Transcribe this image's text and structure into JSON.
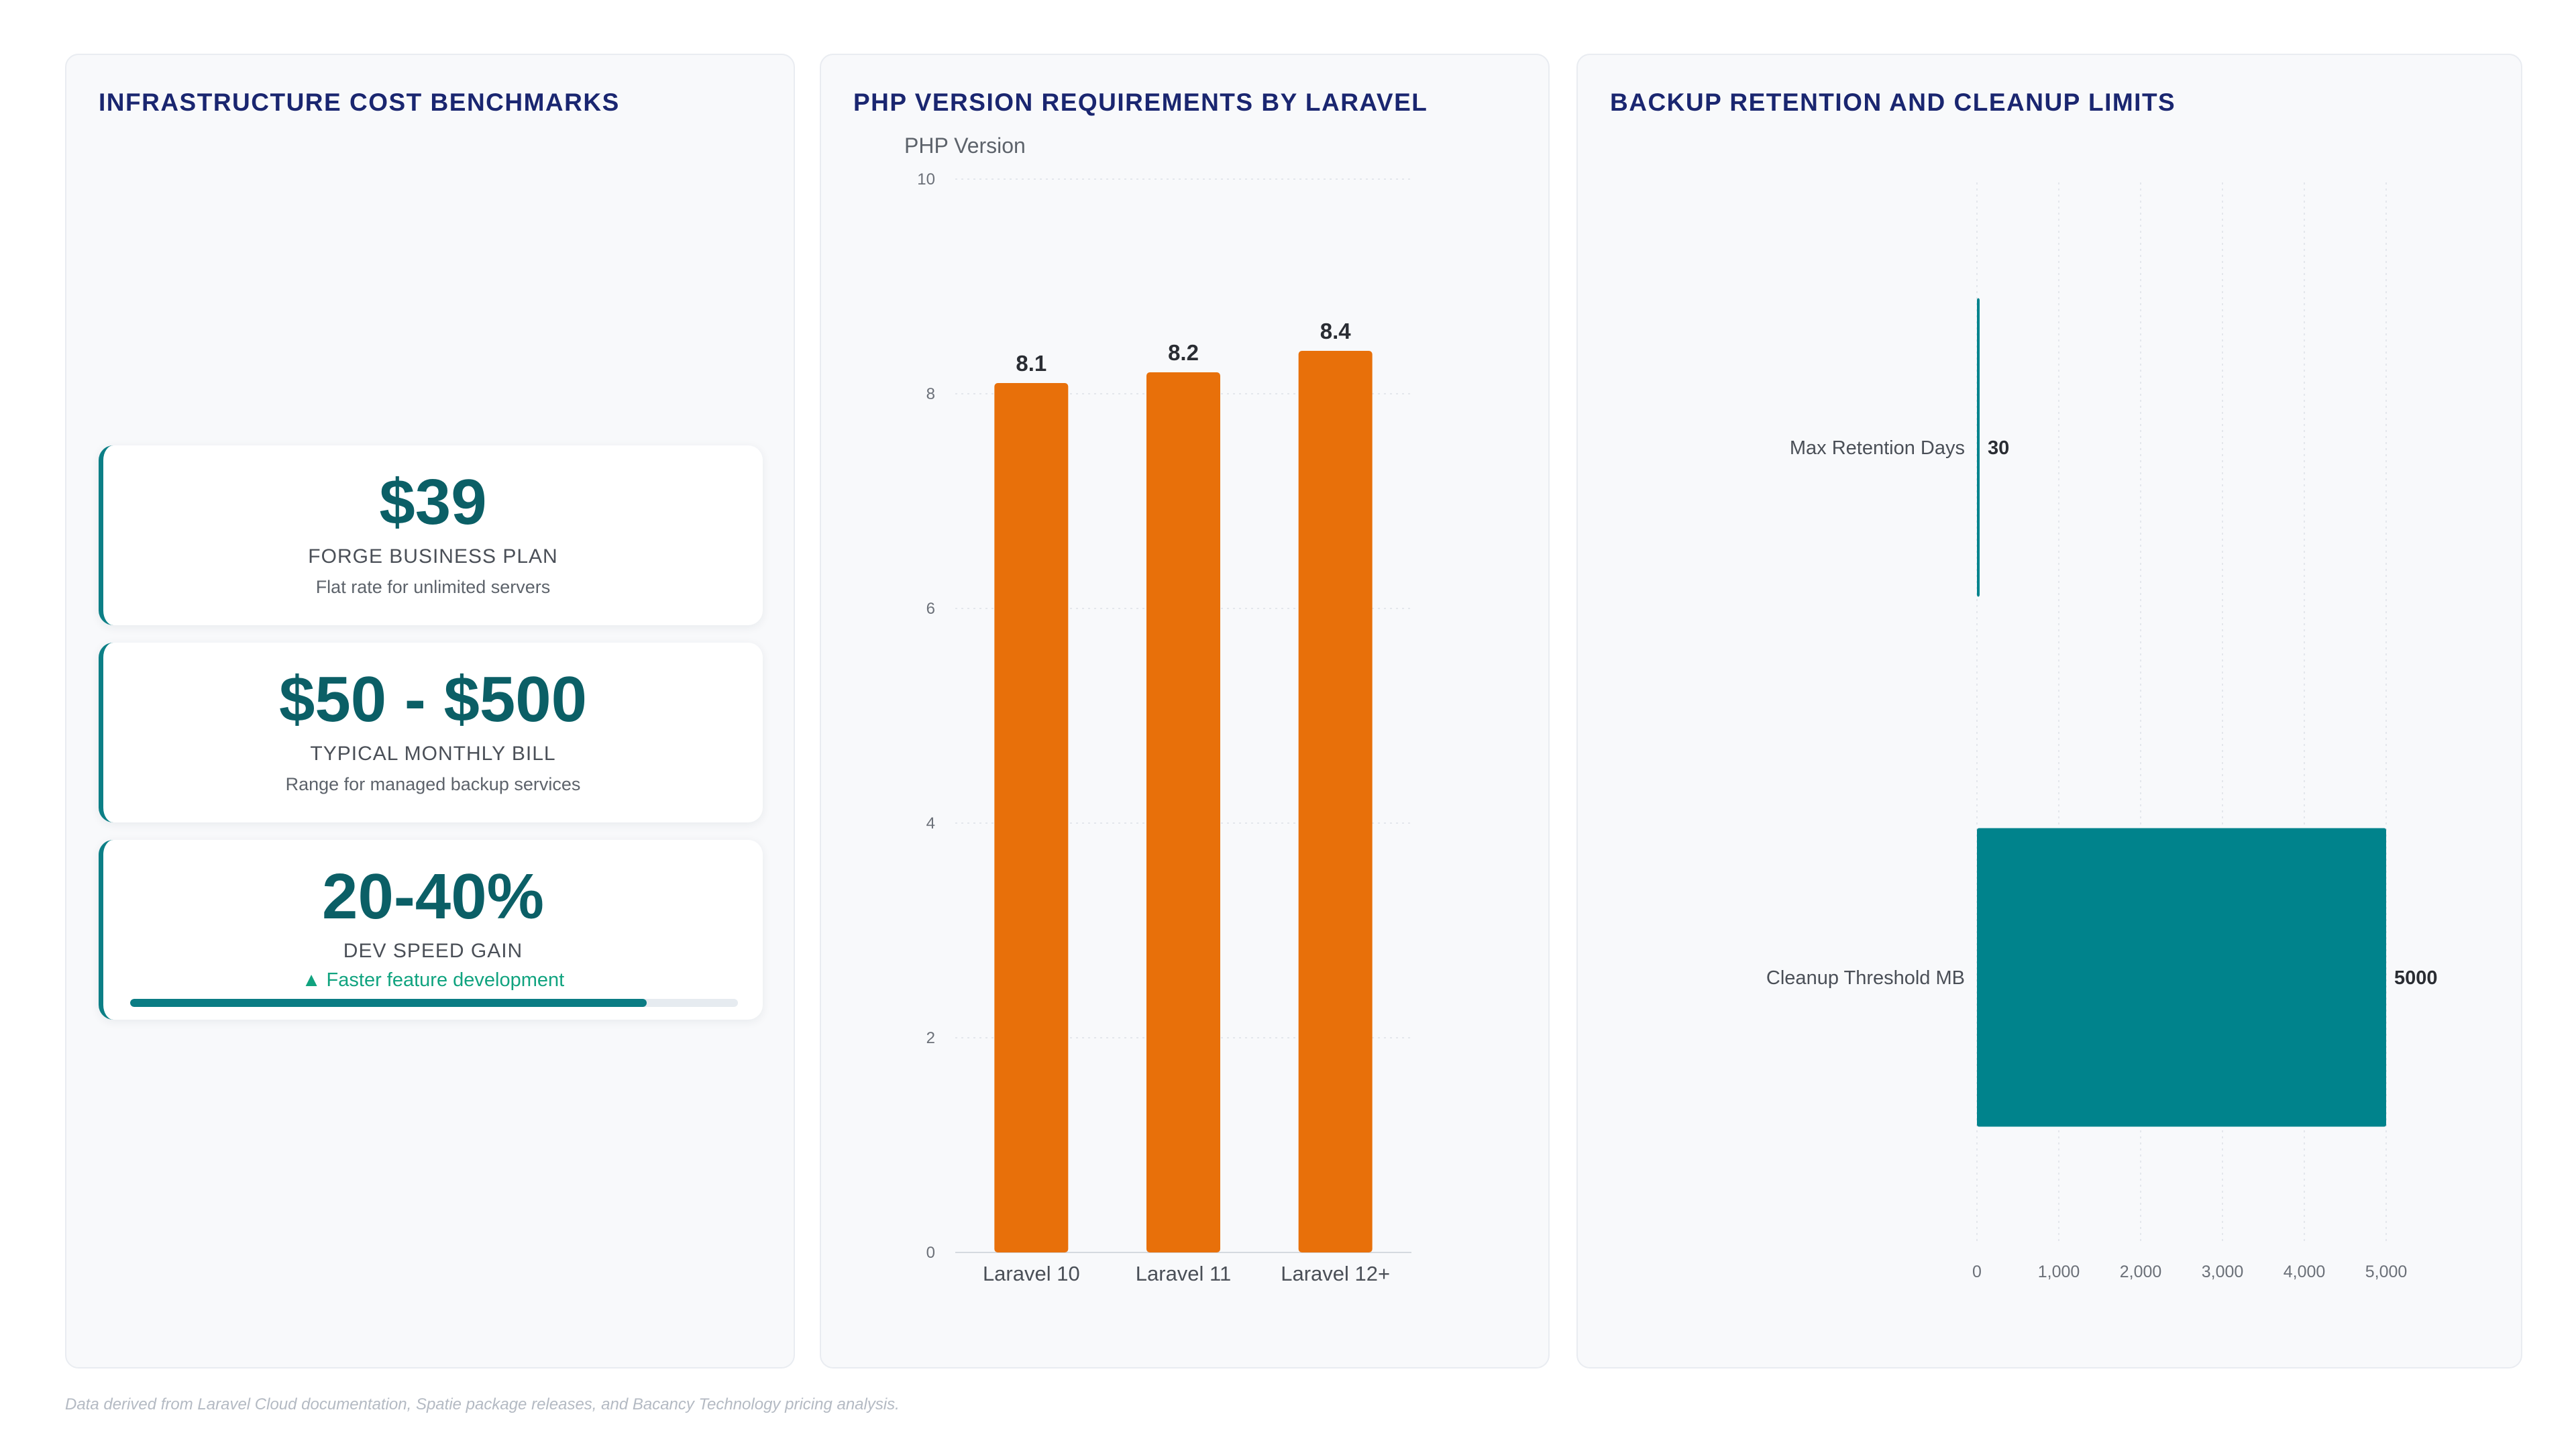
{
  "colors": {
    "accent_teal": "#00838c",
    "accent_dark_teal": "#0b5f66",
    "bar_orange": "#e8700a",
    "title_navy": "#1a2670",
    "trend_green": "#10a37f"
  },
  "panel1": {
    "title": "INFRASTRUCTURE COST BENCHMARKS",
    "cards": [
      {
        "value": "$39",
        "label": "FORGE BUSINESS PLAN",
        "sub": "Flat rate for unlimited servers"
      },
      {
        "value": "$50 - $500",
        "label": "TYPICAL MONTHLY BILL",
        "sub": "Range for managed backup services"
      },
      {
        "value": "20-40%",
        "label": "DEV SPEED GAIN",
        "sub": "▲ Faster feature development",
        "progress": 0.85
      }
    ]
  },
  "panel2": {
    "title": "PHP VERSION REQUIREMENTS BY LARAVEL"
  },
  "panel3": {
    "title": "BACKUP RETENTION AND CLEANUP LIMITS"
  },
  "footer": "Data derived from Laravel Cloud documentation, Spatie package releases, and Bacancy Technology pricing analysis.",
  "chart_data": [
    {
      "type": "bar",
      "orientation": "vertical",
      "title": "PHP VERSION REQUIREMENTS BY LARAVEL",
      "ylabel": "PHP Version",
      "xlabel": "",
      "categories": [
        "Laravel 10",
        "Laravel 11",
        "Laravel 12+"
      ],
      "values": [
        8.1,
        8.2,
        8.4
      ],
      "value_labels": [
        "8.1",
        "8.2",
        "8.4"
      ],
      "ylim": [
        0,
        10
      ],
      "yticks": [
        "0",
        "2",
        "4",
        "6",
        "8",
        "10"
      ],
      "grid": true,
      "color": "#e8700a"
    },
    {
      "type": "bar",
      "orientation": "horizontal",
      "title": "BACKUP RETENTION AND CLEANUP LIMITS",
      "categories": [
        "Max Retention Days",
        "Cleanup Threshold MB"
      ],
      "values": [
        30,
        5000
      ],
      "value_labels": [
        "30",
        "5000"
      ],
      "xlim": [
        0,
        5000
      ],
      "xticks": [
        "0",
        "1,000",
        "2,000",
        "3,000",
        "4,000",
        "5,000"
      ],
      "grid": true,
      "color": "#00838c"
    }
  ]
}
